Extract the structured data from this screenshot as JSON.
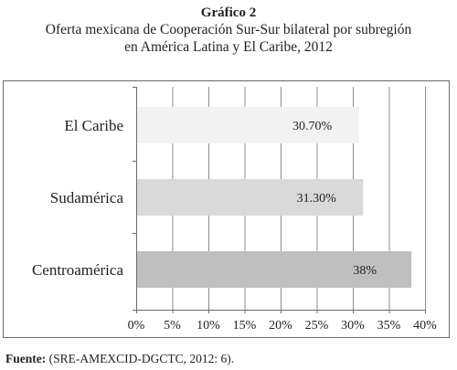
{
  "caption": {
    "label": "Gráfico 2",
    "title_line1": "Oferta mexicana de Cooperación Sur-Sur bilateral por subregión",
    "title_line2": "en América Latina y El Caribe, 2012"
  },
  "source": {
    "label": "Fuente:",
    "text": "(SRE-AMEXCID-DGCTC, 2012: 6)."
  },
  "chart_data": {
    "type": "bar",
    "orientation": "horizontal",
    "categories": [
      "El Caribe",
      "Sudamérica",
      "Centroamérica"
    ],
    "values": [
      30.7,
      31.3,
      38
    ],
    "data_labels": [
      "30.70%",
      "31.30%",
      "38%"
    ],
    "bar_colors": [
      "#f2f2f2",
      "#d9d9d9",
      "#bfbfbf"
    ],
    "xlim": [
      0,
      40
    ],
    "x_ticks": [
      0,
      5,
      10,
      15,
      20,
      25,
      30,
      35,
      40
    ],
    "x_tick_labels": [
      "0%",
      "5%",
      "10%",
      "15%",
      "20%",
      "25%",
      "30%",
      "35%",
      "40%"
    ],
    "grid": "vertical",
    "legend": "none"
  }
}
